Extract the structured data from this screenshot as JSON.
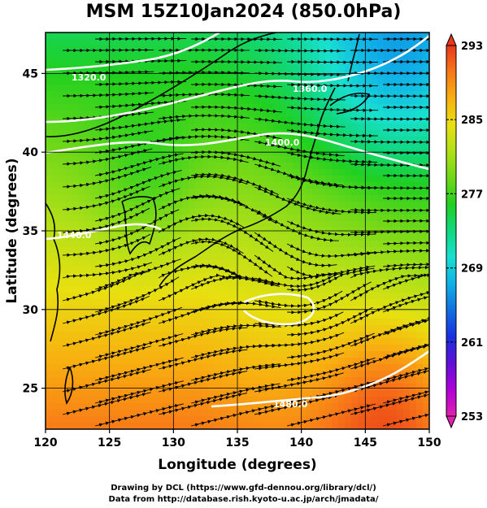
{
  "title": "MSM 15Z10Jan2024 (850.0hPa)",
  "footer": {
    "line1": "Drawing by DCL (https://www.gfd-dennou.org/library/dcl/)",
    "line2": "Data from http://database.rish.kyoto-u.ac.jp/arch/jmadata/"
  },
  "chart_data": {
    "type": "heatmap",
    "title": "MSM 15Z10Jan2024 (850.0hPa)",
    "xlabel": "Longitude (degrees)",
    "ylabel": "Latitude  (degrees)",
    "xlim": [
      120,
      150
    ],
    "ylim": [
      22.4,
      47.6
    ],
    "xticks": [
      120,
      125,
      130,
      135,
      140,
      145,
      150
    ],
    "yticks": [
      25,
      30,
      35,
      40,
      45
    ],
    "grid": true,
    "colorbar": {
      "min": 253,
      "max": 293,
      "ticks": [
        253,
        261,
        269,
        277,
        285,
        293
      ],
      "colors": [
        "#e020b0",
        "#b000d8",
        "#6010d8",
        "#1830e0",
        "#1070e0",
        "#10b0e8",
        "#18e0d0",
        "#10d880",
        "#20d020",
        "#70d818",
        "#b0e018",
        "#e8e010",
        "#f8b010",
        "#f87818",
        "#e83818"
      ]
    },
    "contours": [
      {
        "label": "1320.0"
      },
      {
        "label": "1360.0"
      },
      {
        "label": "1400.0"
      },
      {
        "label": "1440.0"
      },
      {
        "label": "1480.0"
      }
    ]
  }
}
